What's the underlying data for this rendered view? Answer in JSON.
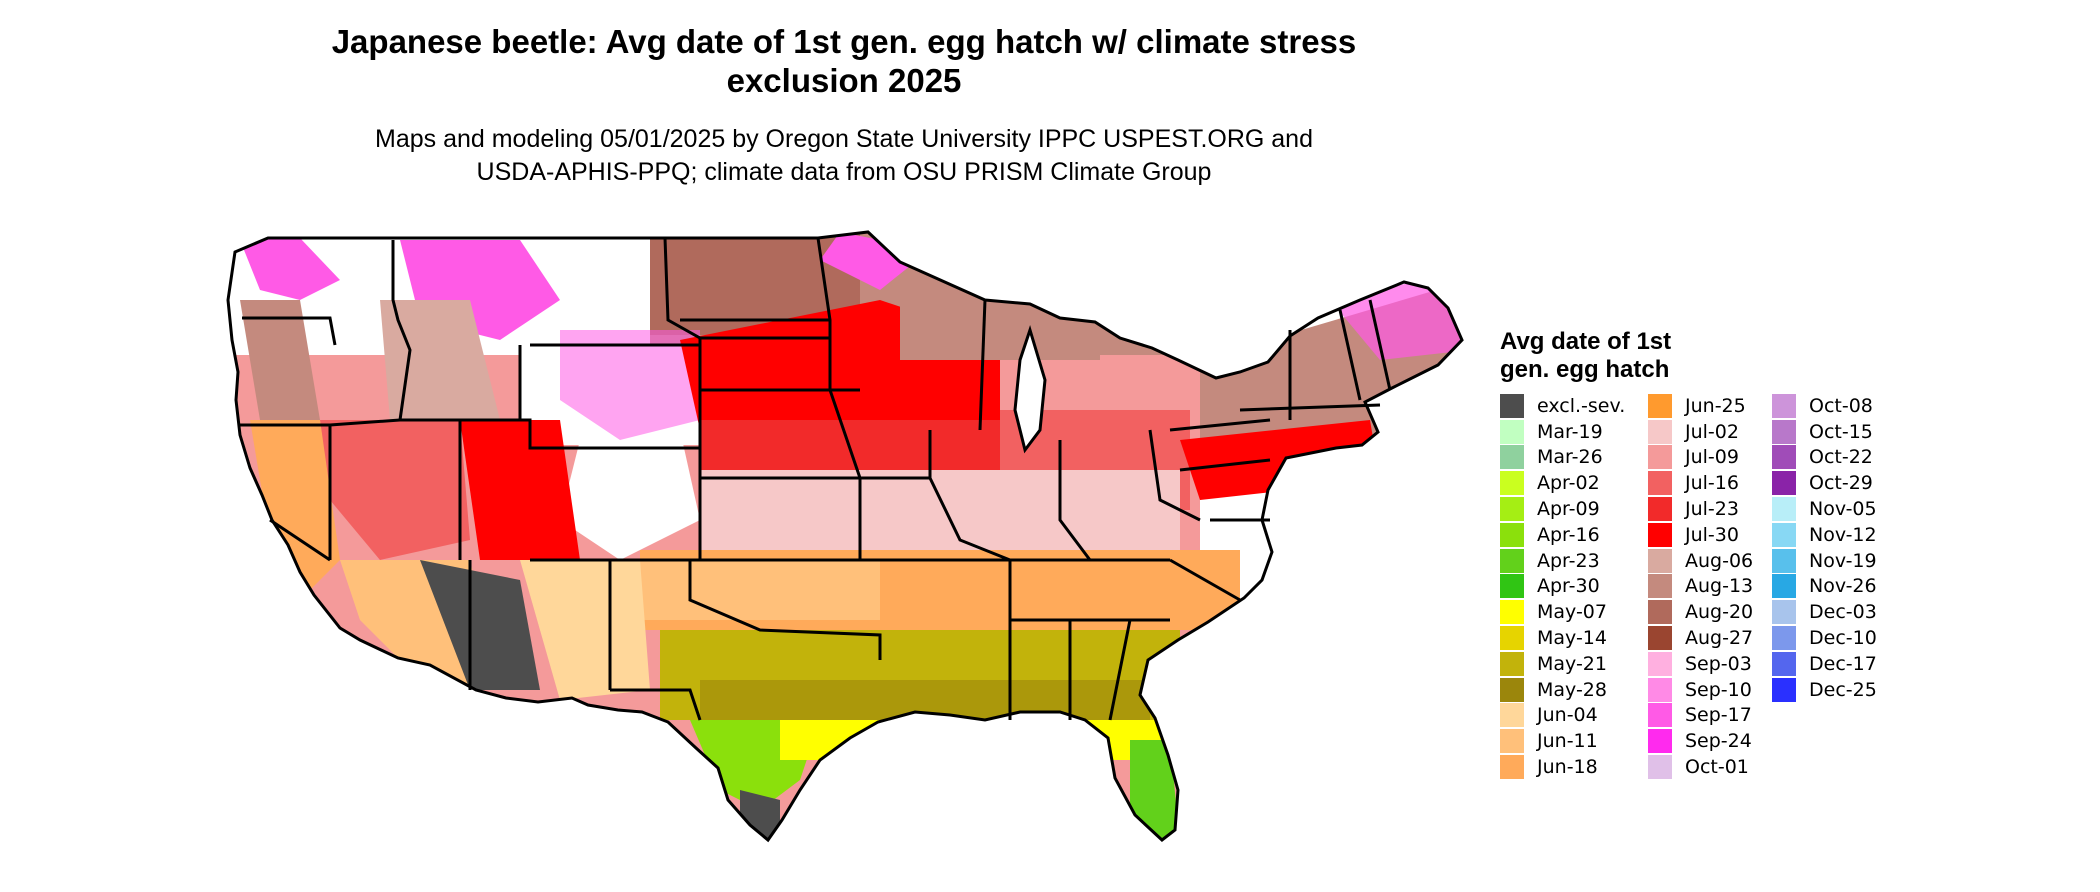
{
  "title": {
    "line1": "Japanese beetle: Avg date of 1st gen. egg hatch w/ climate stress",
    "line2": "exclusion 2025"
  },
  "subtitle": {
    "line1": "Maps and modeling 05/01/2025 by Oregon State University IPPC USPEST.ORG and",
    "line2": "USDA-APHIS-PPQ; climate data from OSU PRISM Climate Group"
  },
  "legend": {
    "title_line1": "Avg date of 1st",
    "title_line2": "gen. egg hatch",
    "columns": [
      [
        {
          "label": "excl.-sev.",
          "color": "#4d4d4d"
        },
        {
          "label": "Mar-19",
          "color": "#c1ffc1"
        },
        {
          "label": "Mar-26",
          "color": "#8fd19e"
        },
        {
          "label": "Apr-02",
          "color": "#caff1f"
        },
        {
          "label": "Apr-09",
          "color": "#a5ee14"
        },
        {
          "label": "Apr-16",
          "color": "#8be00c"
        },
        {
          "label": "Apr-23",
          "color": "#62d11b"
        },
        {
          "label": "Apr-30",
          "color": "#30c514"
        },
        {
          "label": "May-07",
          "color": "#ffff00"
        },
        {
          "label": "May-14",
          "color": "#e6d400"
        },
        {
          "label": "May-21",
          "color": "#c2b30b"
        },
        {
          "label": "May-28",
          "color": "#9b860c"
        },
        {
          "label": "Jun-04",
          "color": "#ffd79a"
        },
        {
          "label": "Jun-11",
          "color": "#ffc07a"
        },
        {
          "label": "Jun-18",
          "color": "#ffaa5a"
        }
      ],
      [
        {
          "label": "Jun-25",
          "color": "#ff9a2e"
        },
        {
          "label": "Jul-02",
          "color": "#f6c8c8"
        },
        {
          "label": "Jul-09",
          "color": "#f49a9a"
        },
        {
          "label": "Jul-16",
          "color": "#f26161"
        },
        {
          "label": "Jul-23",
          "color": "#f22a2a"
        },
        {
          "label": "Jul-30",
          "color": "#ff0000"
        },
        {
          "label": "Aug-06",
          "color": "#d9aaa0"
        },
        {
          "label": "Aug-13",
          "color": "#c48a7e"
        },
        {
          "label": "Aug-20",
          "color": "#b06a5c"
        },
        {
          "label": "Aug-27",
          "color": "#9a4530"
        },
        {
          "label": "Sep-03",
          "color": "#ffb0e0"
        },
        {
          "label": "Sep-10",
          "color": "#ff8ae6"
        },
        {
          "label": "Sep-17",
          "color": "#ff5ae6"
        },
        {
          "label": "Sep-24",
          "color": "#ff2aee"
        },
        {
          "label": "Oct-01",
          "color": "#e0c0e8"
        }
      ],
      [
        {
          "label": "Oct-08",
          "color": "#cd94da"
        },
        {
          "label": "Oct-15",
          "color": "#b878ca"
        },
        {
          "label": "Oct-22",
          "color": "#a04cb8"
        },
        {
          "label": "Oct-29",
          "color": "#8a23a8"
        },
        {
          "label": "Nov-05",
          "color": "#b8eef8"
        },
        {
          "label": "Nov-12",
          "color": "#88d8f4"
        },
        {
          "label": "Nov-19",
          "color": "#58c0ec"
        },
        {
          "label": "Nov-26",
          "color": "#28a8e4"
        },
        {
          "label": "Dec-03",
          "color": "#a8c4ec"
        },
        {
          "label": "Dec-10",
          "color": "#7c98ec"
        },
        {
          "label": "Dec-17",
          "color": "#5466ee"
        },
        {
          "label": "Dec-25",
          "color": "#2a30ff"
        }
      ]
    ]
  }
}
